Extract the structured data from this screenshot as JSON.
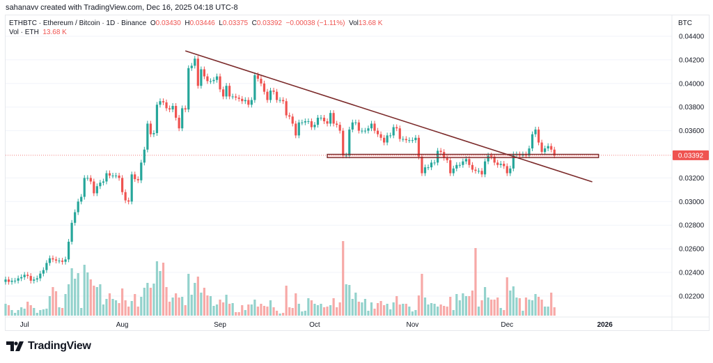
{
  "header": {
    "credit": "sahanavv created with TradingView.com, Dec 16, 2025 04:18 UTC-8"
  },
  "legend": {
    "symbol": "ETHBTC · Ethereum / Bitcoin · 1D · Binance",
    "o_label": "O",
    "o": "0.03430",
    "h_label": "H",
    "h": "0.03446",
    "l_label": "L",
    "l": "0.03375",
    "c_label": "C",
    "c": "0.03392",
    "change": "−0.00038 (−1.11%)",
    "vol_label": "Vol",
    "vol": "13.68 K",
    "vol_row_label": "Vol · ETH",
    "vol_row_value": "13.68 K"
  },
  "footer": {
    "brand": "TradingView"
  },
  "colors": {
    "up": "#26a69a",
    "down": "#ef5350",
    "up_volume": "#93d2cc",
    "down_volume": "#f7a9a7",
    "drawing": "#7b2a2a",
    "grid": "#f0f3fa"
  },
  "chart_data": {
    "type": "candlestick",
    "symbol": "ETHBTC",
    "interval": "1D",
    "price_unit": "BTC",
    "last_price": "0.03392",
    "ylim": [
      0.0208,
      0.0446
    ],
    "y_ticks": [
      "0.04400",
      "0.04200",
      "0.04000",
      "0.03800",
      "0.03600",
      "0.03200",
      "0.03000",
      "0.02800",
      "0.02600",
      "0.02400",
      "0.02200"
    ],
    "x_ticks": [
      {
        "label": "Jul",
        "date": "2025-07-01"
      },
      {
        "label": "Aug",
        "date": "2025-08-01"
      },
      {
        "label": "Sep",
        "date": "2025-09-01"
      },
      {
        "label": "Oct",
        "date": "2025-10-01"
      },
      {
        "label": "Nov",
        "date": "2025-11-01"
      },
      {
        "label": "Dec",
        "date": "2025-12-01"
      },
      {
        "label": "2026",
        "date": "2026-01-01",
        "bold": true
      }
    ],
    "last_date": "2025-12-16",
    "grid": true,
    "close": [
      0.0234,
      0.0232,
      0.0233,
      0.0233,
      0.0235,
      0.0236,
      0.0238,
      0.0237,
      0.0233,
      0.0234,
      0.0235,
      0.0239,
      0.0242,
      0.0248,
      0.0252,
      0.0251,
      0.025,
      0.025,
      0.0249,
      0.0251,
      0.0266,
      0.0282,
      0.0291,
      0.03,
      0.0304,
      0.032,
      0.032,
      0.0317,
      0.0307,
      0.0313,
      0.0316,
      0.0317,
      0.0324,
      0.0322,
      0.0322,
      0.0322,
      0.032,
      0.0308,
      0.0301,
      0.03,
      0.0323,
      0.0319,
      0.0318,
      0.0333,
      0.0344,
      0.0366,
      0.0357,
      0.0358,
      0.0382,
      0.0385,
      0.0384,
      0.0379,
      0.0378,
      0.0381,
      0.0371,
      0.0362,
      0.0379,
      0.0378,
      0.0413,
      0.0415,
      0.0421,
      0.0398,
      0.0412,
      0.0406,
      0.0402,
      0.0402,
      0.0403,
      0.0406,
      0.0395,
      0.0389,
      0.0398,
      0.0389,
      0.0389,
      0.0388,
      0.0387,
      0.0385,
      0.0386,
      0.0382,
      0.0386,
      0.0407,
      0.0404,
      0.04,
      0.0393,
      0.0386,
      0.0394,
      0.0393,
      0.0386,
      0.0386,
      0.0385,
      0.0373,
      0.0372,
      0.0366,
      0.0356,
      0.0367,
      0.0367,
      0.0368,
      0.0368,
      0.0363,
      0.0365,
      0.0371,
      0.0371,
      0.0368,
      0.0366,
      0.0375,
      0.0366,
      0.0365,
      0.036,
      0.0339,
      0.0339,
      0.0361,
      0.0367,
      0.0367,
      0.036,
      0.036,
      0.036,
      0.0362,
      0.0366,
      0.036,
      0.0357,
      0.0354,
      0.035,
      0.0356,
      0.0356,
      0.0363,
      0.0362,
      0.0353,
      0.0353,
      0.0352,
      0.0352,
      0.0352,
      0.0354,
      0.0338,
      0.0324,
      0.0329,
      0.0329,
      0.0333,
      0.0333,
      0.0343,
      0.0342,
      0.0337,
      0.0335,
      0.0324,
      0.0328,
      0.0331,
      0.0331,
      0.0334,
      0.0336,
      0.0331,
      0.0327,
      0.0326,
      0.0326,
      0.0323,
      0.0334,
      0.0339,
      0.0338,
      0.0333,
      0.0331,
      0.0332,
      0.033,
      0.0324,
      0.0328,
      0.034,
      0.034,
      0.0339,
      0.034,
      0.0339,
      0.0345,
      0.0357,
      0.0361,
      0.035,
      0.0342,
      0.0345,
      0.0347,
      0.0344,
      0.0339
    ],
    "volume_relative": [
      17,
      15,
      8,
      4,
      8,
      12,
      10,
      20,
      15,
      11,
      4,
      8,
      9,
      10,
      28,
      41,
      35,
      12,
      11,
      31,
      45,
      68,
      53,
      61,
      11,
      73,
      62,
      52,
      43,
      41,
      45,
      16,
      24,
      32,
      24,
      22,
      18,
      39,
      22,
      13,
      21,
      31,
      13,
      27,
      40,
      47,
      40,
      46,
      78,
      64,
      76,
      41,
      20,
      26,
      32,
      26,
      27,
      15,
      60,
      30,
      47,
      56,
      33,
      40,
      29,
      28,
      14,
      16,
      23,
      19,
      30,
      17,
      18,
      5,
      5,
      15,
      8,
      16,
      16,
      23,
      13,
      17,
      14,
      13,
      22,
      12,
      7,
      3,
      4,
      43,
      12,
      11,
      32,
      17,
      6,
      7,
      25,
      22,
      17,
      15,
      17,
      12,
      13,
      15,
      25,
      12,
      19,
      107,
      45,
      44,
      24,
      33,
      20,
      19,
      24,
      7,
      19,
      10,
      18,
      21,
      15,
      17,
      9,
      19,
      28,
      16,
      17,
      17,
      13,
      6,
      8,
      29,
      60,
      26,
      16,
      18,
      17,
      13,
      16,
      14,
      13,
      27,
      8,
      31,
      22,
      32,
      28,
      28,
      36,
      97,
      13,
      22,
      41,
      26,
      23,
      23,
      26,
      11,
      8,
      55,
      36,
      42,
      26,
      25,
      7,
      26,
      23,
      22,
      31,
      27,
      23,
      13,
      13,
      33,
      12
    ],
    "drawings": [
      {
        "type": "trendline",
        "from": {
          "date": "2025-08-21",
          "price": 0.04276
        },
        "to": {
          "date": "2025-12-28",
          "price": 0.03167
        }
      },
      {
        "type": "rectangle",
        "from": {
          "date": "2025-10-05",
          "price": 0.034
        },
        "to": {
          "date": "2025-12-30",
          "price": 0.03372
        }
      }
    ]
  }
}
